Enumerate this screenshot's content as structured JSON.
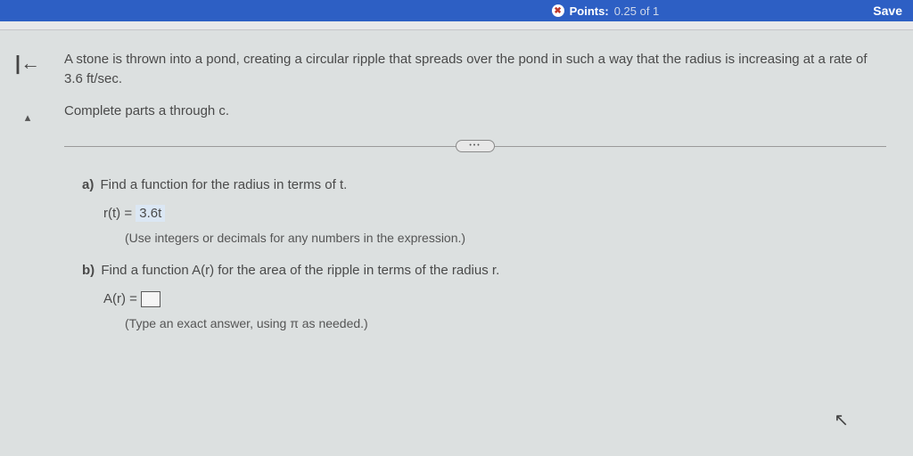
{
  "header": {
    "points_label": "Points:",
    "points_value": "0.25 of 1",
    "save_label": "Save"
  },
  "problem": {
    "intro": "A stone is thrown into a pond, creating a circular ripple that spreads over the pond in such a way that the radius is increasing at a rate of 3.6 ft/sec.",
    "complete": "Complete parts a through c.",
    "parts": {
      "a": {
        "label": "a)",
        "prompt": "Find a function for the radius in terms of t.",
        "eq_lhs": "r(t) = ",
        "eq_answer": "3.6t",
        "hint": "(Use integers or decimals for any numbers in the expression.)"
      },
      "b": {
        "label": "b)",
        "prompt": "Find a function A(r) for the area of the ripple in terms of the radius r.",
        "eq_lhs": "A(r) = ",
        "hint": "(Type an exact answer, using π as needed.)"
      }
    }
  },
  "colors": {
    "header_bg": "#2d5fc4",
    "page_bg": "#dce0e0",
    "answer_highlight": "#dbe7f4",
    "text": "#4a4a4a"
  }
}
